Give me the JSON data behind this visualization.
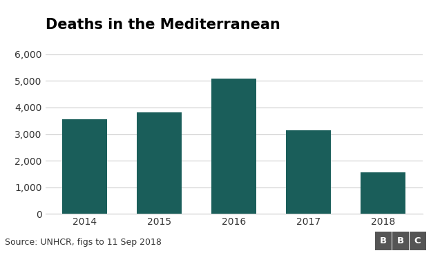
{
  "title": "Deaths in the Mediterranean",
  "categories": [
    "2014",
    "2015",
    "2016",
    "2017",
    "2018"
  ],
  "values": [
    3560,
    3810,
    5100,
    3140,
    1550
  ],
  "bar_color": "#1a5e5a",
  "background_color": "#ffffff",
  "ylim": [
    0,
    6000
  ],
  "yticks": [
    0,
    1000,
    2000,
    3000,
    4000,
    5000,
    6000
  ],
  "source_text": "Source: UNHCR, figs to 11 Sep 2018",
  "bbc_text": "BBC",
  "title_fontsize": 15,
  "tick_fontsize": 10,
  "source_fontsize": 9,
  "grid_color": "#cccccc",
  "footer_bg_color": "#e8e8e8",
  "bbc_bg_color": "#555555",
  "separator_color": "#bbbbbb"
}
